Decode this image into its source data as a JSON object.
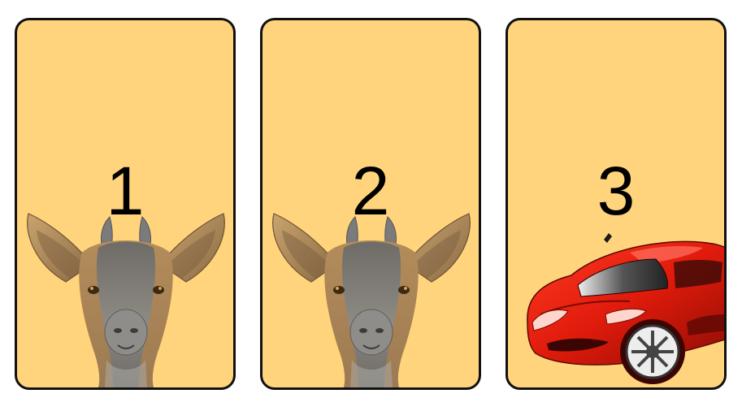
{
  "doors": [
    {
      "number": "1",
      "prize": "goat-icon"
    },
    {
      "number": "2",
      "prize": "goat-icon"
    },
    {
      "number": "3",
      "prize": "car-icon"
    }
  ],
  "colors": {
    "door_fill": "#ffd47c",
    "door_border": "#111111",
    "car_red": "#e01b0c"
  }
}
